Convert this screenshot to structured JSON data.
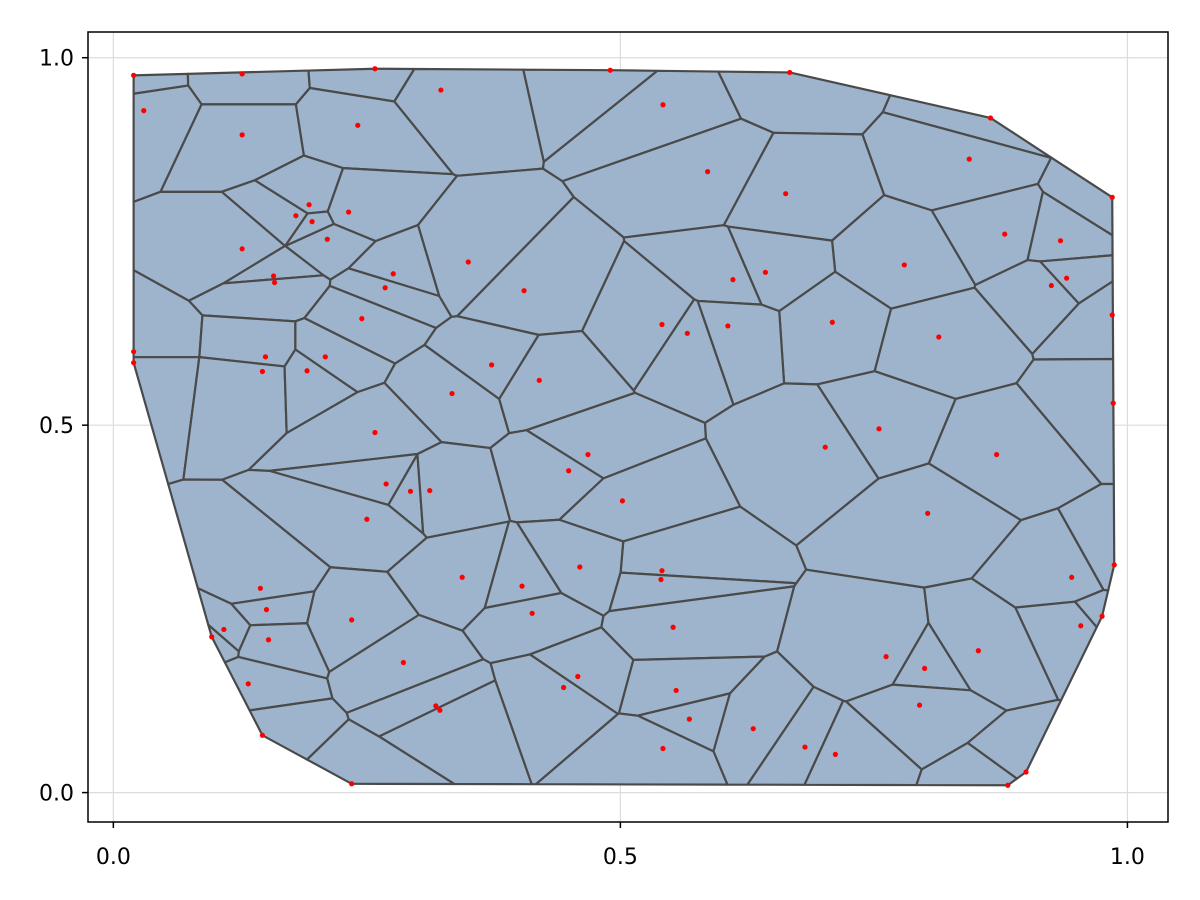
{
  "chart_data": {
    "type": "scatter",
    "title": "",
    "xlabel": "",
    "ylabel": "",
    "xlim": [
      -0.025,
      1.04
    ],
    "ylim": [
      -0.04,
      1.035
    ],
    "grid": true,
    "xticks": [
      0.0,
      0.5,
      1.0
    ],
    "xtick_labels": [
      "0.0",
      "0.5",
      "1.0"
    ],
    "yticks": [
      0.0,
      0.5,
      1.0
    ],
    "ytick_labels": [
      "0.0",
      "0.5",
      "1.0"
    ],
    "colors": {
      "cell_fill": "#9eb4cc",
      "cell_edge": "#4a4a4a",
      "points": "#ff0000"
    },
    "boundary": [
      [
        0.02,
        0.976
      ],
      [
        0.258,
        0.985
      ],
      [
        0.49,
        0.983
      ],
      [
        0.667,
        0.98
      ],
      [
        0.865,
        0.918
      ],
      [
        0.985,
        0.81
      ],
      [
        0.987,
        0.31
      ],
      [
        0.975,
        0.24
      ],
      [
        0.9,
        0.028
      ],
      [
        0.882,
        0.01
      ],
      [
        0.235,
        0.012
      ],
      [
        0.147,
        0.078
      ],
      [
        0.097,
        0.212
      ],
      [
        0.02,
        0.585
      ]
    ],
    "series": [
      {
        "values": [
          [
            0.02,
            0.976
          ],
          [
            0.127,
            0.978
          ],
          [
            0.258,
            0.985
          ],
          [
            0.49,
            0.983
          ],
          [
            0.667,
            0.98
          ],
          [
            0.865,
            0.918
          ],
          [
            0.985,
            0.81
          ],
          [
            0.03,
            0.928
          ],
          [
            0.323,
            0.956
          ],
          [
            0.542,
            0.936
          ],
          [
            0.127,
            0.895
          ],
          [
            0.241,
            0.908
          ],
          [
            0.844,
            0.862
          ],
          [
            0.586,
            0.845
          ],
          [
            0.663,
            0.815
          ],
          [
            0.193,
            0.8
          ],
          [
            0.18,
            0.785
          ],
          [
            0.232,
            0.79
          ],
          [
            0.196,
            0.777
          ],
          [
            0.211,
            0.753
          ],
          [
            0.127,
            0.74
          ],
          [
            0.879,
            0.76
          ],
          [
            0.934,
            0.751
          ],
          [
            0.35,
            0.722
          ],
          [
            0.78,
            0.718
          ],
          [
            0.276,
            0.706
          ],
          [
            0.158,
            0.703
          ],
          [
            0.159,
            0.694
          ],
          [
            0.643,
            0.708
          ],
          [
            0.611,
            0.698
          ],
          [
            0.268,
            0.687
          ],
          [
            0.405,
            0.683
          ],
          [
            0.925,
            0.69
          ],
          [
            0.94,
            0.7
          ],
          [
            0.245,
            0.645
          ],
          [
            0.541,
            0.637
          ],
          [
            0.709,
            0.64
          ],
          [
            0.566,
            0.625
          ],
          [
            0.606,
            0.635
          ],
          [
            0.814,
            0.62
          ],
          [
            0.02,
            0.6
          ],
          [
            0.02,
            0.585
          ],
          [
            0.15,
            0.593
          ],
          [
            0.209,
            0.593
          ],
          [
            0.373,
            0.582
          ],
          [
            0.147,
            0.573
          ],
          [
            0.191,
            0.574
          ],
          [
            0.42,
            0.561
          ],
          [
            0.334,
            0.543
          ],
          [
            0.985,
            0.65
          ],
          [
            0.986,
            0.53
          ],
          [
            0.755,
            0.495
          ],
          [
            0.258,
            0.49
          ],
          [
            0.702,
            0.47
          ],
          [
            0.468,
            0.46
          ],
          [
            0.871,
            0.46
          ],
          [
            0.449,
            0.438
          ],
          [
            0.269,
            0.42
          ],
          [
            0.293,
            0.41
          ],
          [
            0.312,
            0.411
          ],
          [
            0.502,
            0.397
          ],
          [
            0.25,
            0.372
          ],
          [
            0.803,
            0.38
          ],
          [
            0.541,
            0.302
          ],
          [
            0.344,
            0.293
          ],
          [
            0.46,
            0.307
          ],
          [
            0.987,
            0.31
          ],
          [
            0.945,
            0.293
          ],
          [
            0.54,
            0.29
          ],
          [
            0.403,
            0.281
          ],
          [
            0.145,
            0.278
          ],
          [
            0.151,
            0.249
          ],
          [
            0.413,
            0.244
          ],
          [
            0.235,
            0.235
          ],
          [
            0.975,
            0.24
          ],
          [
            0.954,
            0.227
          ],
          [
            0.552,
            0.225
          ],
          [
            0.109,
            0.222
          ],
          [
            0.097,
            0.212
          ],
          [
            0.153,
            0.208
          ],
          [
            0.762,
            0.185
          ],
          [
            0.8,
            0.169
          ],
          [
            0.286,
            0.177
          ],
          [
            0.853,
            0.193
          ],
          [
            0.458,
            0.158
          ],
          [
            0.133,
            0.148
          ],
          [
            0.444,
            0.143
          ],
          [
            0.555,
            0.139
          ],
          [
            0.318,
            0.118
          ],
          [
            0.322,
            0.112
          ],
          [
            0.795,
            0.119
          ],
          [
            0.568,
            0.1
          ],
          [
            0.631,
            0.087
          ],
          [
            0.542,
            0.06
          ],
          [
            0.682,
            0.062
          ],
          [
            0.712,
            0.052
          ],
          [
            0.147,
            0.078
          ],
          [
            0.235,
            0.012
          ],
          [
            0.9,
            0.028
          ],
          [
            0.882,
            0.01
          ]
        ]
      }
    ]
  }
}
